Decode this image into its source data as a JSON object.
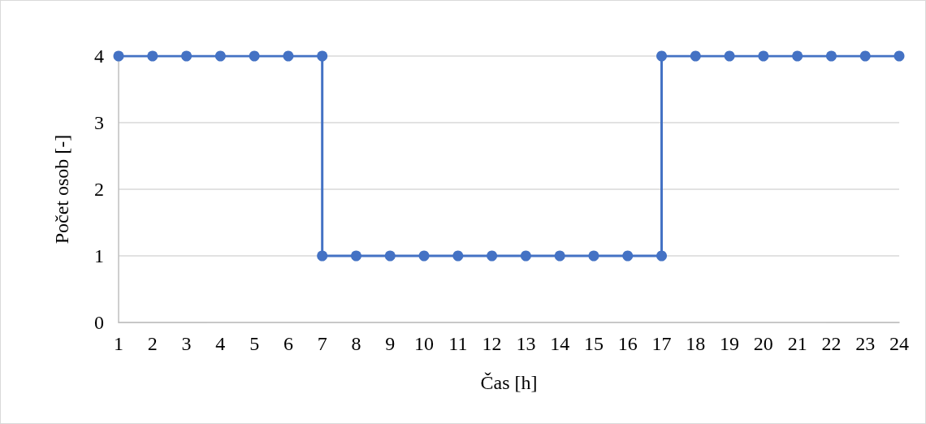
{
  "chart_data": {
    "type": "line",
    "xlabel": "Čas [h]",
    "ylabel": "Počet osob [-]",
    "x": [
      1,
      2,
      3,
      4,
      5,
      6,
      7,
      7,
      8,
      9,
      10,
      11,
      12,
      13,
      14,
      15,
      16,
      17,
      17,
      18,
      19,
      20,
      21,
      22,
      23,
      24
    ],
    "series": [
      {
        "color": "#4472c4",
        "values": [
          4,
          4,
          4,
          4,
          4,
          4,
          4,
          1,
          1,
          1,
          1,
          1,
          1,
          1,
          1,
          1,
          1,
          1,
          4,
          4,
          4,
          4,
          4,
          4,
          4,
          4
        ]
      }
    ],
    "xlim": [
      1,
      24
    ],
    "xticks": [
      1,
      2,
      3,
      4,
      5,
      6,
      7,
      8,
      9,
      10,
      11,
      12,
      13,
      14,
      15,
      16,
      17,
      18,
      19,
      20,
      21,
      22,
      23,
      24
    ],
    "ylim": [
      0,
      4
    ],
    "yticks": [
      0,
      1,
      2,
      3,
      4
    ],
    "grid": "y",
    "marker": "circle",
    "line_style": "solid"
  }
}
